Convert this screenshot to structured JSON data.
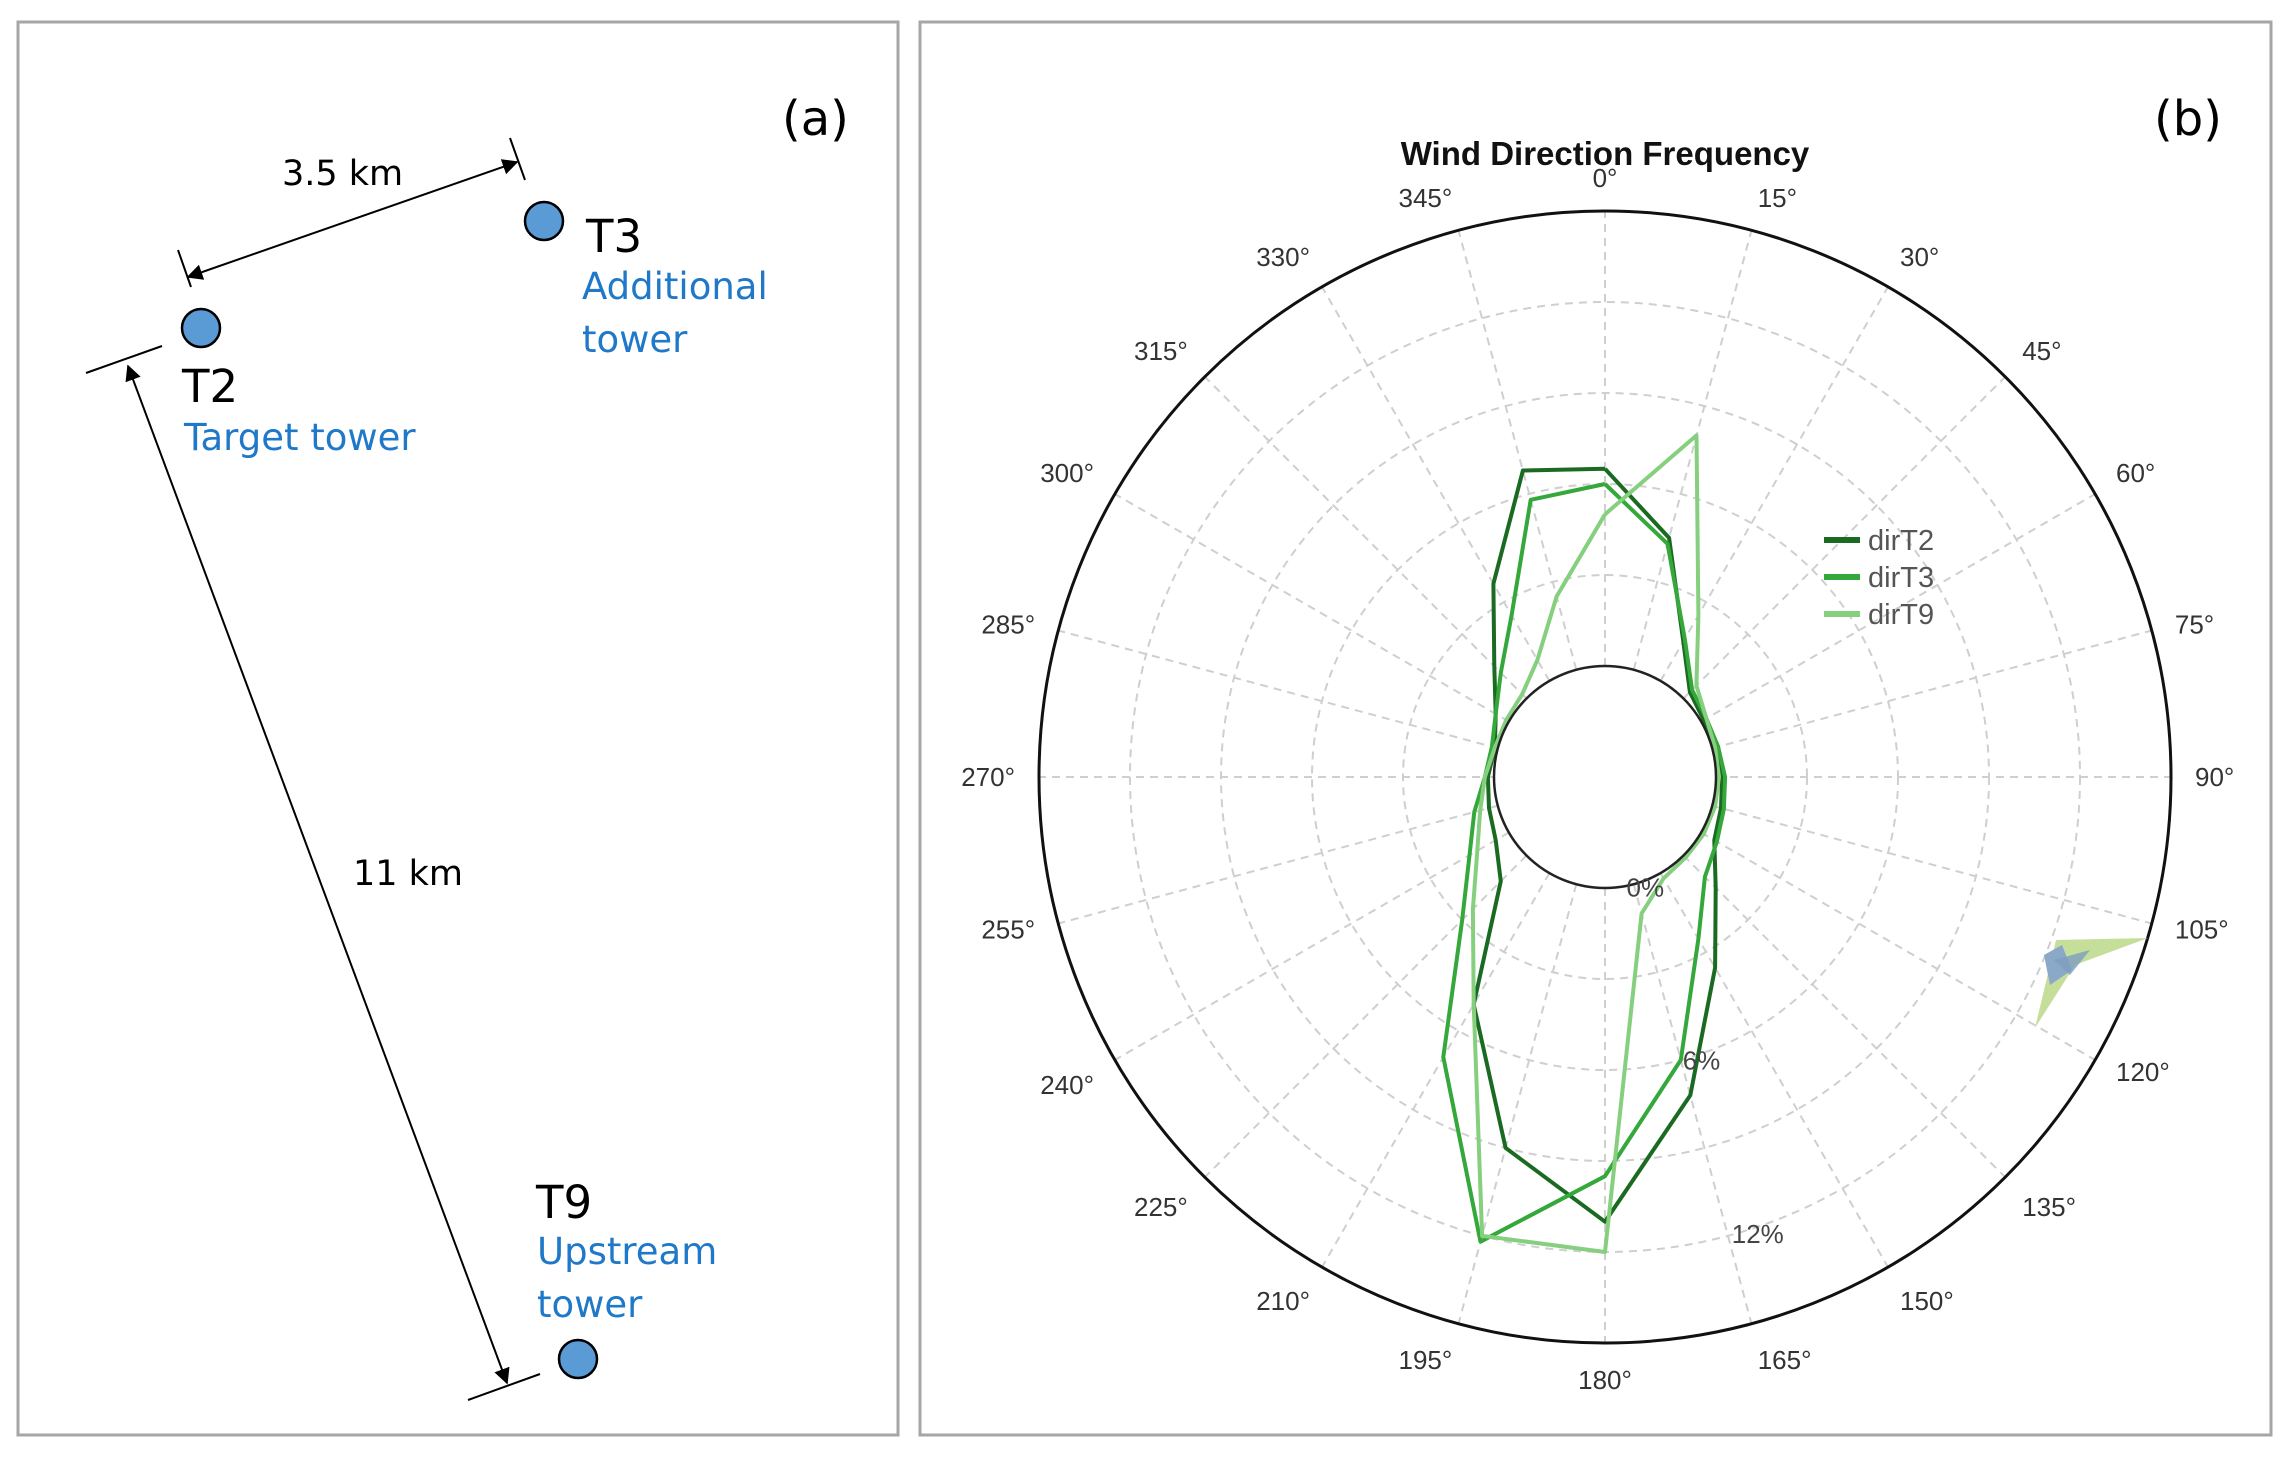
{
  "panel_a": {
    "label": "(a)",
    "towers": [
      {
        "id": "T2",
        "role": "Target tower"
      },
      {
        "id": "T3",
        "role_line1": "Additional",
        "role_line2": "tower"
      },
      {
        "id": "T9",
        "role_line1": "Upstream",
        "role_line2": "tower"
      }
    ],
    "distances": {
      "t2_t3": "3.5 km",
      "t2_t9": "11 km"
    }
  },
  "panel_b": {
    "label": "(b)"
  },
  "colors": {
    "dirT2": "#1b6a22",
    "dirT3": "#34a83a",
    "dirT9": "#86cf7e"
  },
  "chart_data": {
    "type": "polar-line",
    "title": "Wind Direction Frequency",
    "angle_labels": [
      "0°",
      "15°",
      "30°",
      "45°",
      "60°",
      "75°",
      "90°",
      "105°",
      "120°",
      "135°",
      "150°",
      "165°",
      "180°",
      "195°",
      "210°",
      "225°",
      "240°",
      "255°",
      "270°",
      "285°",
      "300°",
      "315°",
      "330°",
      "345°"
    ],
    "radial_range": [
      0,
      15
    ],
    "radial_labels": [
      {
        "value": 0,
        "label": "0%"
      },
      {
        "value": 6,
        "label": "6%"
      },
      {
        "value": 12,
        "label": "12%"
      }
    ],
    "directions": [
      0,
      15,
      30,
      45,
      60,
      75,
      90,
      105,
      120,
      135,
      150,
      165,
      180,
      195,
      210,
      225,
      240,
      255,
      270,
      285,
      300,
      315,
      330,
      345
    ],
    "series": [
      {
        "name": "dirT2",
        "values": [
          6.5,
          4.5,
          1.5,
          0.3,
          0.1,
          0.1,
          0.2,
          0.3,
          0.5,
          1.5,
          3.6,
          7.2,
          11.0,
          9.0,
          5.0,
          1.2,
          0.5,
          0.3,
          0.2,
          0.1,
          0.5,
          1.5,
          3.7,
          6.8
        ]
      },
      {
        "name": "dirT3",
        "values": [
          6.0,
          4.3,
          1.6,
          0.4,
          0.2,
          0.2,
          0.3,
          0.4,
          0.6,
          1.0,
          2.5,
          6.0,
          9.5,
          12.2,
          7.0,
          3.0,
          1.5,
          0.8,
          0.3,
          0.2,
          0.5,
          1.2,
          2.5,
          5.8
        ]
      },
      {
        "name": "dirT9",
        "values": [
          5.0,
          8.0,
          2.5,
          0.6,
          0.2,
          0.1,
          0.1,
          0.1,
          0.1,
          0.1,
          0.2,
          1.0,
          12.0,
          12.0,
          5.0,
          2.5,
          1.2,
          0.6,
          0.3,
          0.1,
          0.1,
          0.2,
          0.8,
          2.5
        ]
      }
    ],
    "legend": [
      "dirT2",
      "dirT3",
      "dirT9"
    ],
    "legend_position": "right"
  }
}
